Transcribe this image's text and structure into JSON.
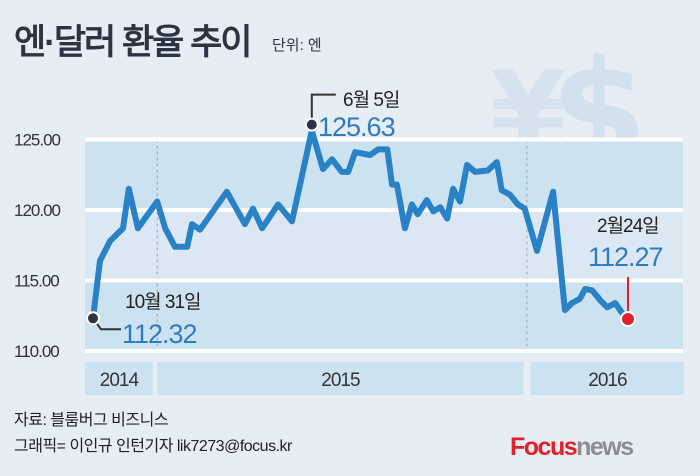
{
  "title": "엔·달러 환율 추이",
  "unit": "단위: 엔",
  "chart_data": {
    "type": "line",
    "title": "엔·달러 환율 추이",
    "ylabel": "엔",
    "ylim": [
      110,
      125
    ],
    "yticks": [
      "125.00",
      "120.00",
      "115.00",
      "110.00"
    ],
    "ytick_values": [
      125,
      120,
      115,
      110
    ],
    "x_years": [
      {
        "label": "2014",
        "start": -1.5,
        "end": 11.2
      },
      {
        "label": "2015",
        "start": 12.0,
        "end": 80.5
      },
      {
        "label": "2016",
        "start": 81.8,
        "end": 110.5
      }
    ],
    "year_boundaries": [
      12.0,
      81.1
    ],
    "t": [
      0,
      1.3,
      3.2,
      5.6,
      6.7,
      8.4,
      12.0,
      13.5,
      15.3,
      17.6,
      18.5,
      20.0,
      25.0,
      28.4,
      29.9,
      31.6,
      34.6,
      37.2,
      40.9,
      43.0,
      44.7,
      46.5,
      47.7,
      49.0,
      51.8,
      53.3,
      55.0,
      55.9,
      56.8,
      58.3,
      59.6,
      60.7,
      62.4,
      63.6,
      64.9,
      66.2,
      67.3,
      68.6,
      69.9,
      71.4,
      73.8,
      75.5,
      76.4,
      77.9,
      79.4,
      80.7,
      83.0,
      86.0,
      88.2,
      89.5,
      91.0,
      92.0,
      93.3,
      94.8,
      96.1,
      97.6,
      98.9,
      100
    ],
    "values": [
      112.32,
      116.4,
      117.8,
      118.7,
      121.5,
      118.7,
      120.6,
      118.7,
      117.4,
      117.4,
      119.0,
      118.6,
      121.3,
      119.0,
      120.1,
      118.7,
      120.4,
      119.2,
      125.63,
      122.9,
      123.6,
      122.7,
      122.7,
      124.1,
      123.9,
      124.3,
      124.3,
      121.8,
      121.8,
      118.7,
      120.4,
      119.7,
      120.7,
      119.9,
      120.2,
      119.4,
      121.5,
      120.6,
      123.2,
      122.7,
      122.8,
      123.4,
      121.4,
      121.1,
      120.4,
      120.1,
      117.1,
      121.3,
      112.9,
      113.4,
      113.7,
      114.4,
      114.3,
      113.6,
      113.1,
      113.4,
      112.7,
      112.27
    ],
    "annotations": [
      {
        "date": "10월 31일",
        "value": "112.32"
      },
      {
        "date": "6월 5일",
        "value": "125.63"
      },
      {
        "date": "2월24일",
        "value": "112.27"
      }
    ],
    "colors": {
      "line": "#2a82c6",
      "end_marker": "#e0202a",
      "band": "#cde2f1"
    }
  },
  "footer": {
    "source": "자료: 블룸버그 비즈니스",
    "credit": "그래픽= 이인규 인턴기자 lik7273@focus.kr"
  },
  "logo": {
    "part1": "Focus",
    "part2": "news"
  }
}
